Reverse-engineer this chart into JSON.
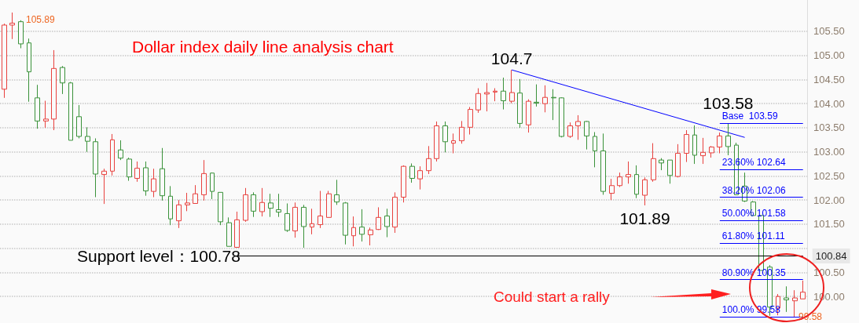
{
  "chart_data": {
    "type": "candlestick",
    "title": "Dollar index daily line analysis chart",
    "categories": [
      null,
      null,
      null,
      null,
      null,
      null,
      null,
      null,
      null,
      null,
      null,
      null,
      null,
      null,
      null,
      null,
      null,
      null,
      null,
      null,
      null,
      null,
      null,
      null,
      null,
      null,
      null,
      null,
      null,
      null,
      null,
      null,
      null,
      null,
      null,
      null,
      null,
      null,
      null,
      null,
      null,
      null,
      null,
      null,
      null,
      null,
      null,
      null,
      null,
      null,
      null,
      null,
      null,
      null,
      null,
      null,
      null,
      null,
      null,
      null,
      null,
      null,
      null,
      null,
      null,
      null,
      null,
      null,
      null,
      null,
      null,
      null,
      null,
      null,
      null,
      null,
      null,
      null,
      null,
      null,
      null,
      null,
      null,
      null,
      null,
      null,
      null,
      null,
      null,
      null,
      null,
      null,
      null,
      null,
      null,
      null,
      null
    ],
    "series": [
      {
        "type": "candlestick",
        "ohlc": [
          [
            104.3,
            105.66,
            104.12,
            105.63
          ],
          [
            105.63,
            105.89,
            105.34,
            105.67
          ],
          [
            105.7,
            105.73,
            105.15,
            105.24
          ],
          [
            105.26,
            105.35,
            104.04,
            104.66
          ],
          [
            104.12,
            104.39,
            103.48,
            103.64
          ],
          [
            103.64,
            104.06,
            103.5,
            103.68
          ],
          [
            103.68,
            105.11,
            103.45,
            104.73
          ],
          [
            104.75,
            104.78,
            104.2,
            104.43
          ],
          [
            104.43,
            104.45,
            103.24,
            103.24
          ],
          [
            103.73,
            103.97,
            103.28,
            103.32
          ],
          [
            103.32,
            103.51,
            103.0,
            103.22
          ],
          [
            103.21,
            103.28,
            102.06,
            102.54
          ],
          [
            102.53,
            102.65,
            101.92,
            102.6
          ],
          [
            102.6,
            103.37,
            102.51,
            103.25
          ],
          [
            103.04,
            103.24,
            102.83,
            102.87
          ],
          [
            102.85,
            102.88,
            102.4,
            102.48
          ],
          [
            102.45,
            102.8,
            102.38,
            102.66
          ],
          [
            102.67,
            102.8,
            102.09,
            102.19
          ],
          [
            102.18,
            102.65,
            102.06,
            102.44
          ],
          [
            102.65,
            103.08,
            101.99,
            102.09
          ],
          [
            102.08,
            102.29,
            101.48,
            101.61
          ],
          [
            101.57,
            102.0,
            101.42,
            101.9
          ],
          [
            101.9,
            102.15,
            101.77,
            101.94
          ],
          [
            101.93,
            102.31,
            101.93,
            102.13
          ],
          [
            102.11,
            102.83,
            101.99,
            102.55
          ],
          [
            102.56,
            102.57,
            102.02,
            102.18
          ],
          [
            102.16,
            102.16,
            101.48,
            101.55
          ],
          [
            101.53,
            101.64,
            101.04,
            101.04
          ],
          [
            101.02,
            101.76,
            101.02,
            101.59
          ],
          [
            101.58,
            102.25,
            101.55,
            102.11
          ],
          [
            102.11,
            102.16,
            101.65,
            101.77
          ],
          [
            101.76,
            102.25,
            101.66,
            101.95
          ],
          [
            101.94,
            102.13,
            101.65,
            101.83
          ],
          [
            101.8,
            102.13,
            101.65,
            101.75
          ],
          [
            101.72,
            101.93,
            101.34,
            101.37
          ],
          [
            101.36,
            101.95,
            101.22,
            101.85
          ],
          [
            101.85,
            101.9,
            101.01,
            101.45
          ],
          [
            101.44,
            101.82,
            101.29,
            101.51
          ],
          [
            101.49,
            102.19,
            101.42,
            101.67
          ],
          [
            101.64,
            102.19,
            101.64,
            102.13
          ],
          [
            102.11,
            102.42,
            101.9,
            101.96
          ],
          [
            101.94,
            101.96,
            101.08,
            101.27
          ],
          [
            101.26,
            101.66,
            101.04,
            101.43
          ],
          [
            101.44,
            101.81,
            101.14,
            101.29
          ],
          [
            101.28,
            101.43,
            101.06,
            101.38
          ],
          [
            101.39,
            101.85,
            101.38,
            101.64
          ],
          [
            101.67,
            101.82,
            101.23,
            101.45
          ],
          [
            101.44,
            102.16,
            101.32,
            102.06
          ],
          [
            102.06,
            102.72,
            101.95,
            102.7
          ],
          [
            102.7,
            102.76,
            102.36,
            102.45
          ],
          [
            102.44,
            102.7,
            102.22,
            102.61
          ],
          [
            102.61,
            103.12,
            102.54,
            102.86
          ],
          [
            102.86,
            103.63,
            102.8,
            103.54
          ],
          [
            103.54,
            103.63,
            102.99,
            103.21
          ],
          [
            103.18,
            103.38,
            102.97,
            103.23
          ],
          [
            103.23,
            103.64,
            103.17,
            103.51
          ],
          [
            103.51,
            103.93,
            103.36,
            103.88
          ],
          [
            103.87,
            104.32,
            103.81,
            104.21
          ],
          [
            104.2,
            104.43,
            103.84,
            104.23
          ],
          [
            104.24,
            104.32,
            104.05,
            104.26
          ],
          [
            104.26,
            104.54,
            103.88,
            104.06
          ],
          [
            104.05,
            104.7,
            104.01,
            104.23
          ],
          [
            104.22,
            104.51,
            103.5,
            103.59
          ],
          [
            103.56,
            104.09,
            103.4,
            104.05
          ],
          [
            104.03,
            104.4,
            103.94,
            104.01
          ],
          [
            104.0,
            104.38,
            103.82,
            104.13
          ],
          [
            104.13,
            104.3,
            103.66,
            104.12
          ],
          [
            104.12,
            104.13,
            103.3,
            103.32
          ],
          [
            103.32,
            103.61,
            103.29,
            103.54
          ],
          [
            103.54,
            103.76,
            103.25,
            103.63
          ],
          [
            103.63,
            103.64,
            103.05,
            103.33
          ],
          [
            103.32,
            103.41,
            102.68,
            103.02
          ],
          [
            103.02,
            103.38,
            102.11,
            102.18
          ],
          [
            102.14,
            102.44,
            102.0,
            102.3
          ],
          [
            102.3,
            102.57,
            102.27,
            102.48
          ],
          [
            102.48,
            102.8,
            102.34,
            102.53
          ],
          [
            102.53,
            102.72,
            102.04,
            102.12
          ],
          [
            102.1,
            102.47,
            101.89,
            102.42
          ],
          [
            102.42,
            103.18,
            102.38,
            102.86
          ],
          [
            102.83,
            102.87,
            102.62,
            102.77
          ],
          [
            102.83,
            102.83,
            102.34,
            102.51
          ],
          [
            102.49,
            103.16,
            102.47,
            102.97
          ],
          [
            102.97,
            103.45,
            102.79,
            103.36
          ],
          [
            103.35,
            103.55,
            102.75,
            102.93
          ],
          [
            102.92,
            103.29,
            102.75,
            102.99
          ],
          [
            102.98,
            103.12,
            102.88,
            103.1
          ],
          [
            103.1,
            103.4,
            102.97,
            103.33
          ],
          [
            103.33,
            103.59,
            102.93,
            103.11
          ],
          [
            103.14,
            103.19,
            102.11,
            102.11
          ],
          [
            102.29,
            102.57,
            101.96,
            101.98
          ],
          [
            101.96,
            101.98,
            101.68,
            101.68
          ],
          [
            101.68,
            101.68,
            100.54,
            100.54
          ],
          [
            100.61,
            100.65,
            99.6,
            99.78
          ],
          [
            99.76,
            100.05,
            99.61,
            100.0
          ],
          [
            99.97,
            100.21,
            99.68,
            99.93
          ],
          [
            99.91,
            100.13,
            99.58,
            99.97
          ],
          [
            99.95,
            100.33,
            99.95,
            100.09
          ]
        ],
        "colors": [
          "#e8413e",
          "#e8413e",
          "#3a923a",
          "#3a923a",
          "#3a923a",
          "#e8413e",
          "#e8413e",
          "#3a923a",
          "#3a923a",
          "#3a923a",
          "#3a923a",
          "#3a923a",
          "#e8413e",
          "#e8413e",
          "#3a923a",
          "#3a923a",
          "#e8413e",
          "#3a923a",
          "#e8413e",
          "#3a923a",
          "#3a923a",
          "#e8413e",
          "#e8413e",
          "#e8413e",
          "#e8413e",
          "#3a923a",
          "#3a923a",
          "#3a923a",
          "#e8413e",
          "#e8413e",
          "#3a923a",
          "#e8413e",
          "#3a923a",
          "#3a923a",
          "#3a923a",
          "#e8413e",
          "#3a923a",
          "#e8413e",
          "#e8413e",
          "#e8413e",
          "#3a923a",
          "#3a923a",
          "#e8413e",
          "#3a923a",
          "#e8413e",
          "#e8413e",
          "#3a923a",
          "#e8413e",
          "#e8413e",
          "#3a923a",
          "#e8413e",
          "#e8413e",
          "#e8413e",
          "#3a923a",
          "#e8413e",
          "#e8413e",
          "#e8413e",
          "#e8413e",
          "#e8413e",
          "#e8413e",
          "#3a923a",
          "#e8413e",
          "#3a923a",
          "#e8413e",
          "#3a923a",
          "#e8413e",
          "#3a923a",
          "#3a923a",
          "#e8413e",
          "#e8413e",
          "#3a923a",
          "#3a923a",
          "#3a923a",
          "#e8413e",
          "#e8413e",
          "#e8413e",
          "#3a923a",
          "#e8413e",
          "#e8413e",
          "#3a923a",
          "#3a923a",
          "#e8413e",
          "#e8413e",
          "#3a923a",
          "#e8413e",
          "#e8413e",
          "#e8413e",
          "#3a923a",
          "#3a923a",
          "#3a923a",
          "#3a923a",
          "#3a923a",
          "#3a923a",
          "#e8413e",
          "#3a923a",
          "#e8413e",
          "#e8413e"
        ]
      },
      {
        "type": "line",
        "color": "#0000ff",
        "values": [
          null,
          null,
          null,
          null,
          null,
          null,
          null,
          null,
          null,
          null,
          null,
          null,
          null,
          null,
          null,
          null,
          null,
          null,
          null,
          null,
          null,
          null,
          null,
          null,
          null,
          null,
          null,
          null,
          null,
          null,
          null,
          null,
          null,
          null,
          null,
          null,
          null,
          null,
          null,
          null,
          null,
          null,
          null,
          null,
          null,
          null,
          null,
          null,
          null,
          null,
          null,
          null,
          null,
          null,
          null,
          null,
          null,
          null,
          null,
          null,
          null,
          104.7,
          null,
          null,
          null,
          null,
          null,
          null,
          null,
          null,
          null,
          null,
          null,
          null,
          null,
          null,
          null,
          null,
          null,
          null,
          null,
          null,
          null,
          null,
          null,
          null,
          null,
          null,
          null,
          103.3,
          null,
          null,
          null,
          null,
          null,
          null,
          null
        ]
      }
    ],
    "ylim": [
      99.45,
      106.15
    ],
    "yticks": [
      {
        "value": 100,
        "label": "100.00"
      },
      {
        "value": 100.5,
        "label": "100.50"
      },
      {
        "value": 101,
        "label": null
      },
      {
        "value": 101.5,
        "label": "101.50"
      },
      {
        "value": 102,
        "label": "102.00"
      },
      {
        "value": 102.5,
        "label": "102.50"
      },
      {
        "value": 103,
        "label": "103.00"
      },
      {
        "value": 103.5,
        "label": "103.50"
      },
      {
        "value": 104,
        "label": "104.00"
      },
      {
        "value": 104.5,
        "label": "104.50"
      },
      {
        "value": 105,
        "label": "105.00"
      },
      {
        "value": 105.5,
        "label": "105.50"
      }
    ],
    "grid": "y",
    "tick_labels": "y",
    "ref_lines": [
      {
        "axis": "y",
        "value": 100.84,
        "label": "100.84",
        "color": "#000000"
      },
      {
        "axis": "y",
        "value": 103.59,
        "label": "Base  103.59",
        "color": "#0000ff"
      },
      {
        "axis": "y",
        "value": 102.64,
        "label": "23.60% 102.64",
        "color": "#0000ff"
      },
      {
        "axis": "y",
        "value": 102.06,
        "label": "38.20% 102.06",
        "color": "#0000ff"
      },
      {
        "axis": "y",
        "value": 101.58,
        "label": "50.00% 101.58",
        "color": "#0000ff"
      },
      {
        "axis": "y",
        "value": 101.11,
        "label": "61.80% 101.11",
        "color": "#0000ff"
      },
      {
        "axis": "y",
        "value": 100.35,
        "label": "80.90% 100.35",
        "color": "#0000ff"
      },
      {
        "axis": "y",
        "value": 99.58,
        "label": "100.0% 99.58",
        "color": "#0000ff"
      }
    ],
    "annotations": [
      {
        "text": "104.7",
        "y": 104.7
      },
      {
        "text": "103.58",
        "y": 103.58
      },
      {
        "text": "101.89",
        "y": 101.89
      },
      "105.89",
      "99.58",
      "Support level：100.78",
      "Could start a rally"
    ]
  }
}
